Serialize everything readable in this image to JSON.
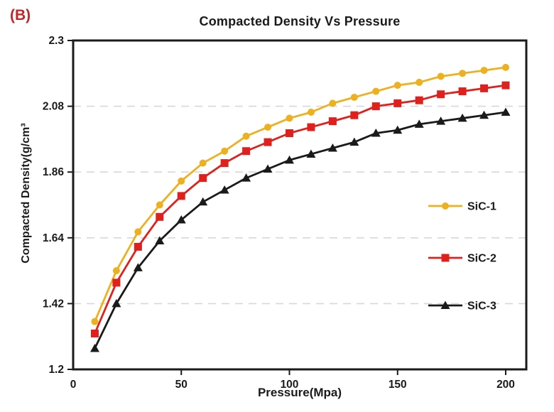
{
  "figure_label": "(B)",
  "chart_data": {
    "type": "line",
    "title": "Compacted Density Vs Pressure",
    "xlabel": "Pressure(Mpa)",
    "ylabel": "Compacted Density(g/cm³",
    "x": [
      10,
      20,
      30,
      40,
      50,
      60,
      70,
      80,
      90,
      100,
      110,
      120,
      130,
      140,
      150,
      160,
      170,
      180,
      190,
      200
    ],
    "series": [
      {
        "name": "SiC-1",
        "color": "#EDB120",
        "marker": "circle",
        "values": [
          1.36,
          1.53,
          1.66,
          1.75,
          1.83,
          1.89,
          1.93,
          1.98,
          2.01,
          2.04,
          2.06,
          2.09,
          2.11,
          2.13,
          2.15,
          2.16,
          2.18,
          2.19,
          2.2,
          2.21
        ]
      },
      {
        "name": "SiC-2",
        "color": "#E0201C",
        "marker": "square",
        "values": [
          1.32,
          1.49,
          1.61,
          1.71,
          1.78,
          1.84,
          1.89,
          1.93,
          1.96,
          1.99,
          2.01,
          2.03,
          2.05,
          2.08,
          2.09,
          2.1,
          2.12,
          2.13,
          2.14,
          2.15
        ]
      },
      {
        "name": "SiC-3",
        "color": "#1A1A1A",
        "marker": "triangle",
        "values": [
          1.27,
          1.42,
          1.54,
          1.63,
          1.7,
          1.76,
          1.8,
          1.84,
          1.87,
          1.9,
          1.92,
          1.94,
          1.96,
          1.99,
          2.0,
          2.02,
          2.03,
          2.04,
          2.05,
          2.06
        ]
      }
    ],
    "xlim": [
      0,
      210
    ],
    "ylim": [
      1.2,
      2.3
    ],
    "xticks": [
      0,
      50,
      100,
      150,
      200
    ],
    "yticks": [
      1.2,
      1.42,
      1.64,
      1.86,
      2.08,
      2.3
    ],
    "grid": "horizontal-dashed",
    "legend_position": "inside-right"
  },
  "colors": {
    "grid": "#D8D8D8",
    "axis": "#1A1A1A",
    "figure_label": "#C0272D",
    "background": "#FFFFFF"
  }
}
